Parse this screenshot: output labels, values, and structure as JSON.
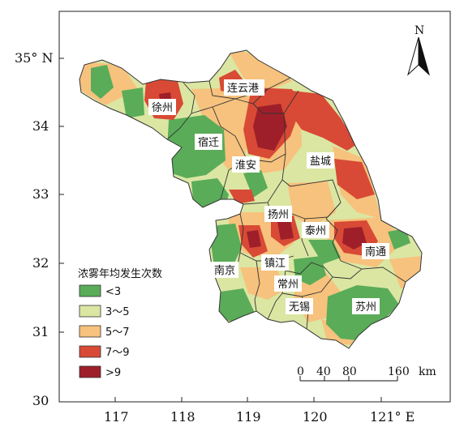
{
  "map": {
    "y_ticks": [
      "35° N",
      "34",
      "33",
      "32",
      "31",
      "30"
    ],
    "x_ticks": [
      "117",
      "118",
      "119",
      "120",
      "121° E"
    ],
    "north_label": "N",
    "cities": [
      {
        "name": "连云港"
      },
      {
        "name": "徐州"
      },
      {
        "name": "宿迁"
      },
      {
        "name": "淮安"
      },
      {
        "name": "盐城"
      },
      {
        "name": "扬州"
      },
      {
        "name": "泰州"
      },
      {
        "name": "南通"
      },
      {
        "name": "南京"
      },
      {
        "name": "镇江"
      },
      {
        "name": "常州"
      },
      {
        "name": "无锡"
      },
      {
        "name": "苏州"
      }
    ],
    "legend": {
      "title": "浓雾年均发生次数",
      "items": [
        {
          "label": "<3",
          "color": "#5aac58"
        },
        {
          "label": "3～5",
          "color": "#dbe6a3"
        },
        {
          "label": "5～7",
          "color": "#f6c27d"
        },
        {
          "label": "7～9",
          "color": "#d84a35"
        },
        {
          "label": ">9",
          "color": "#9e1f2a"
        }
      ]
    },
    "scale_bar": {
      "labels": [
        "0",
        "40",
        "80",
        "160"
      ],
      "unit": "km"
    }
  }
}
